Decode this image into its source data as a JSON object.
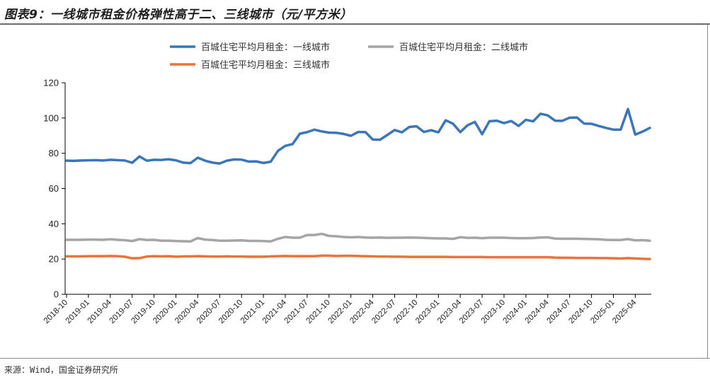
{
  "title": "图表9：一线城市租金价格弹性高于二、三线城市（元/平方米）",
  "source": "来源：Wind，国金证券研究所",
  "chart_data": {
    "type": "line",
    "ylim": [
      0,
      120
    ],
    "yticks": [
      0,
      20,
      40,
      60,
      80,
      100,
      120
    ],
    "grid": false,
    "legend_position": "top",
    "x_start": "2018-10",
    "x_tick_labels": [
      "2018-10",
      "2019-01",
      "2019-04",
      "2019-07",
      "2019-10",
      "2020-01",
      "2020-04",
      "2020-07",
      "2020-10",
      "2021-01",
      "2021-04",
      "2021-07",
      "2021-10",
      "2022-01",
      "2022-04",
      "2022-07",
      "2022-10",
      "2023-01",
      "2023-04",
      "2023-07",
      "2023-10",
      "2024-01",
      "2024-04",
      "2024-07",
      "2024-10",
      "2025-01",
      "2025-04"
    ],
    "series": [
      {
        "name": "百城住宅平均月租金：一线城市",
        "color": "#3a76b8",
        "values": [
          75.8,
          75.7,
          75.9,
          76,
          76.1,
          75.9,
          76.3,
          76.1,
          75.9,
          74.6,
          78.2,
          75.8,
          76.3,
          76.2,
          76.6,
          76,
          74.7,
          74.4,
          77.5,
          75.8,
          74.7,
          74.2,
          75.8,
          76.5,
          76.4,
          75.3,
          75.4,
          74.5,
          75.2,
          81.4,
          84.2,
          85.2,
          91.1,
          92,
          93.4,
          92.4,
          91.7,
          91.6,
          91,
          89.9,
          92.1,
          92,
          87.8,
          87.7,
          90.4,
          93.2,
          91.9,
          94.9,
          95.3,
          92.1,
          93.1,
          91.9,
          98.7,
          96.8,
          92,
          95.9,
          97.8,
          90.8,
          98.2,
          98.5,
          97.1,
          98.3,
          95.5,
          99,
          98.1,
          102.4,
          101.5,
          98.5,
          98.4,
          100.2,
          100.3,
          96.8,
          96.7,
          95.5,
          94.4,
          93.4,
          93.4,
          105.1,
          90.6,
          92.3,
          94.4
        ]
      },
      {
        "name": "百城住宅平均月租金：二线城市",
        "color": "#a5a5a5",
        "values": [
          30.9,
          30.9,
          30.9,
          31,
          31,
          30.9,
          31.2,
          30.9,
          30.7,
          30.2,
          31.3,
          30.8,
          30.9,
          30.4,
          30.4,
          30.2,
          30.1,
          30,
          31.9,
          31,
          30.8,
          30.4,
          30.4,
          30.5,
          30.6,
          30.3,
          30.3,
          30.2,
          30,
          31.5,
          32.5,
          32.1,
          32.1,
          33.6,
          33.6,
          34.3,
          33.1,
          32.9,
          32.5,
          32.3,
          32.5,
          32.2,
          32.1,
          32.2,
          32,
          32.1,
          32.1,
          32.2,
          32.1,
          32,
          31.8,
          31.7,
          31.7,
          31.4,
          32.4,
          32,
          32.1,
          31.8,
          32.1,
          32.1,
          32.1,
          31.9,
          31.8,
          31.8,
          31.9,
          32.2,
          32.3,
          31.6,
          31.5,
          31.5,
          31.5,
          31.4,
          31.3,
          31.2,
          30.9,
          30.8,
          30.8,
          31.3,
          30.6,
          30.7,
          30.4
        ]
      },
      {
        "name": "百城住宅平均月租金：三线城市",
        "color": "#e8743b",
        "values": [
          21.5,
          21.5,
          21.5,
          21.6,
          21.6,
          21.6,
          21.7,
          21.6,
          21.3,
          20.4,
          20.5,
          21.4,
          21.6,
          21.5,
          21.6,
          21.3,
          21.5,
          21.5,
          21.6,
          21.5,
          21.4,
          21.4,
          21.5,
          21.4,
          21.4,
          21.3,
          21.3,
          21.3,
          21.5,
          21.6,
          21.7,
          21.6,
          21.6,
          21.6,
          21.6,
          21.9,
          21.9,
          21.7,
          21.8,
          21.8,
          21.7,
          21.6,
          21.5,
          21.4,
          21.4,
          21.3,
          21.3,
          21.2,
          21.2,
          21.2,
          21.2,
          21.2,
          21.2,
          21.1,
          21.1,
          21.1,
          21.1,
          21.1,
          21,
          21,
          21,
          21,
          21,
          21,
          21,
          21,
          21,
          20.8,
          20.7,
          20.7,
          20.6,
          20.6,
          20.6,
          20.5,
          20.5,
          20.4,
          20.3,
          20.5,
          20.3,
          20.1,
          20
        ]
      }
    ]
  }
}
